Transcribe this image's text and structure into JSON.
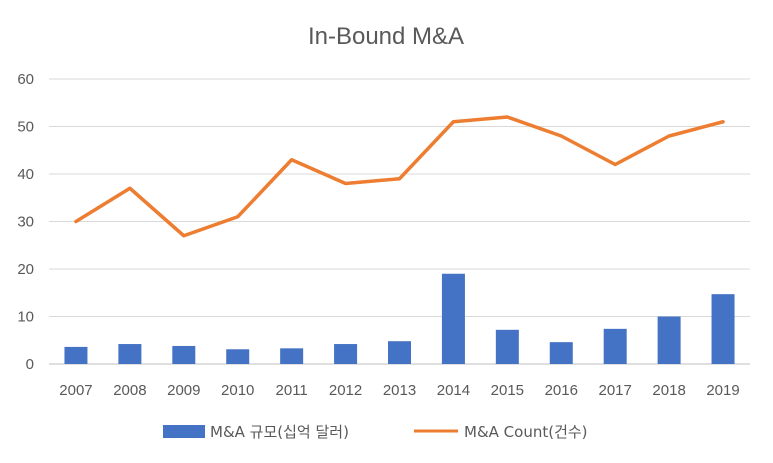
{
  "chart_data": {
    "type": "bar+line",
    "title": "In-Bound M&A",
    "categories": [
      "2007",
      "2008",
      "2009",
      "2010",
      "2011",
      "2012",
      "2013",
      "2014",
      "2015",
      "2016",
      "2017",
      "2018",
      "2019"
    ],
    "series": [
      {
        "name": "M&A 규모(십억 달러)",
        "type": "bar",
        "color": "#4472C4",
        "values": [
          3.6,
          4.2,
          3.8,
          3.1,
          3.3,
          4.2,
          4.8,
          19,
          7.2,
          4.6,
          7.4,
          10,
          14.7
        ]
      },
      {
        "name": "M&A Count(건수)",
        "type": "line",
        "color": "#ED7D31",
        "values": [
          30,
          37,
          27,
          31,
          43,
          38,
          39,
          51,
          52,
          48,
          42,
          48,
          51
        ]
      }
    ],
    "ylim": [
      0,
      60
    ],
    "yticks": [
      "0",
      "10",
      "20",
      "30",
      "40",
      "50",
      "60"
    ],
    "grid": true,
    "legend": "bottom-center"
  }
}
